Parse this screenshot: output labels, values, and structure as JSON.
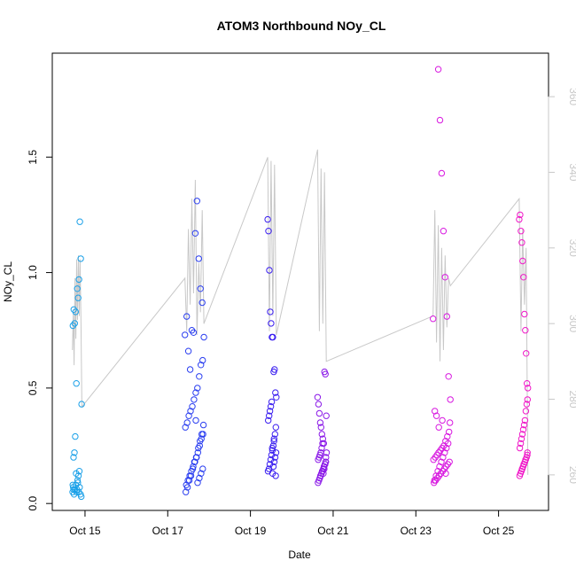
{
  "chart_data": {
    "type": "scatter",
    "title": "ATOM3 Northbound NOy_CL",
    "xlabel": "Date",
    "ylabel": "NOy_CL",
    "xlim": [
      "2017-10-14T05:00",
      "2017-10-26T05:00"
    ],
    "ylim": [
      -0.03,
      1.95
    ],
    "y2lim": [
      250.6,
      371.5
    ],
    "x_ticks": [
      {
        "x": "2017-10-15",
        "label": "Oct 15"
      },
      {
        "x": "2017-10-17",
        "label": "Oct 17"
      },
      {
        "x": "2017-10-19",
        "label": "Oct 19"
      },
      {
        "x": "2017-10-21",
        "label": "Oct 21"
      },
      {
        "x": "2017-10-23",
        "label": "Oct 23"
      },
      {
        "x": "2017-10-25",
        "label": "Oct 25"
      }
    ],
    "y_ticks": [
      {
        "value": 0.0,
        "label": "0.0"
      },
      {
        "value": 0.5,
        "label": "0.5"
      },
      {
        "value": 1.0,
        "label": "1.0"
      },
      {
        "value": 1.5,
        "label": "1.5"
      }
    ],
    "y2_ticks": [
      {
        "value": 260,
        "label": "260"
      },
      {
        "value": 280,
        "label": "280"
      },
      {
        "value": 300,
        "label": "300"
      },
      {
        "value": 320,
        "label": "320"
      },
      {
        "value": 340,
        "label": "340"
      },
      {
        "value": 360,
        "label": "360"
      }
    ],
    "grid": false,
    "colors": {
      "background_line": "#c8c8c8",
      "right_axis": "#c8c8c8",
      "axis": "#000000"
    },
    "series": [
      {
        "color": "#1aa0e8",
        "x": [
          "2017-10-14T17:00",
          "2017-10-14T17:30",
          "2017-10-14T18:00",
          "2017-10-14T18:30",
          "2017-10-14T19:00",
          "2017-10-14T19:30",
          "2017-10-14T20:00",
          "2017-10-14T20:30",
          "2017-10-14T21:00",
          "2017-10-14T21:30",
          "2017-10-14T22:00",
          "2017-10-14T16:50",
          "2017-10-14T17:10",
          "2017-10-14T17:40",
          "2017-10-14T18:10",
          "2017-10-14T18:40",
          "2017-10-14T19:10",
          "2017-10-14T19:40",
          "2017-10-14T20:10",
          "2017-10-14T20:40",
          "2017-10-14T17:20",
          "2017-10-14T17:50",
          "2017-10-14T18:20",
          "2017-10-14T18:50",
          "2017-10-14T19:20",
          "2017-10-14T19:50",
          "2017-10-14T20:20",
          "2017-10-14T20:50",
          "2017-10-14T21:20",
          "2017-10-14T21:50",
          "2017-10-14T16:55",
          "2017-10-14T17:25"
        ],
        "y": [
          0.77,
          0.84,
          0.78,
          0.83,
          0.52,
          0.93,
          0.89,
          0.97,
          1.22,
          1.06,
          0.43,
          0.05,
          0.07,
          0.04,
          0.06,
          0.08,
          0.05,
          0.1,
          0.12,
          0.14,
          0.2,
          0.22,
          0.29,
          0.13,
          0.06,
          0.09,
          0.05,
          0.07,
          0.04,
          0.03,
          0.08,
          0.06
        ]
      },
      {
        "color": "#2a3ef0",
        "x": [
          "2017-10-17T10:00",
          "2017-10-17T11:00",
          "2017-10-17T12:00",
          "2017-10-17T13:00",
          "2017-10-17T14:00",
          "2017-10-17T15:00",
          "2017-10-17T16:00",
          "2017-10-17T17:00",
          "2017-10-17T18:00",
          "2017-10-17T19:00",
          "2017-10-17T20:00",
          "2017-10-17T21:00",
          "2017-10-17T10:30",
          "2017-10-17T11:30",
          "2017-10-17T12:30",
          "2017-10-17T13:30",
          "2017-10-17T14:30",
          "2017-10-17T15:30",
          "2017-10-17T16:30",
          "2017-10-17T17:30",
          "2017-10-17T18:30",
          "2017-10-17T19:30",
          "2017-10-17T20:30",
          "2017-10-17T10:15",
          "2017-10-17T11:15",
          "2017-10-17T12:15",
          "2017-10-17T13:15",
          "2017-10-17T14:15",
          "2017-10-17T15:15",
          "2017-10-17T16:15",
          "2017-10-17T17:15",
          "2017-10-17T18:15",
          "2017-10-17T19:15",
          "2017-10-17T20:15",
          "2017-10-17T10:45",
          "2017-10-17T11:45",
          "2017-10-17T12:45",
          "2017-10-17T13:45",
          "2017-10-17T14:45",
          "2017-10-17T15:45",
          "2017-10-17T16:45",
          "2017-10-17T17:45",
          "2017-10-17T18:45",
          "2017-10-17T19:45",
          "2017-10-17T20:45",
          "2017-10-17T16:20",
          "2017-10-17T17:20",
          "2017-10-17T18:20",
          "2017-10-17T19:20",
          "2017-10-17T20:20"
        ],
        "y": [
          0.73,
          0.81,
          0.66,
          0.58,
          0.75,
          0.74,
          1.17,
          1.31,
          1.06,
          0.93,
          0.87,
          0.72,
          0.05,
          0.07,
          0.1,
          0.12,
          0.15,
          0.18,
          0.2,
          0.22,
          0.25,
          0.28,
          0.3,
          0.33,
          0.35,
          0.38,
          0.4,
          0.42,
          0.45,
          0.48,
          0.5,
          0.55,
          0.6,
          0.62,
          0.08,
          0.1,
          0.12,
          0.14,
          0.16,
          0.18,
          0.2,
          0.24,
          0.27,
          0.3,
          0.34,
          0.36,
          0.09,
          0.11,
          0.13,
          0.15
        ]
      },
      {
        "color": "#3a1ef0",
        "x": [
          "2017-10-19T10:00",
          "2017-10-19T10:30",
          "2017-10-19T11:00",
          "2017-10-19T11:30",
          "2017-10-19T12:00",
          "2017-10-19T12:30",
          "2017-10-19T13:00",
          "2017-10-19T13:30",
          "2017-10-19T14:00",
          "2017-10-19T14:30",
          "2017-10-19T15:00",
          "2017-10-19T10:15",
          "2017-10-19T10:45",
          "2017-10-19T11:15",
          "2017-10-19T11:45",
          "2017-10-19T12:15",
          "2017-10-19T12:45",
          "2017-10-19T13:15",
          "2017-10-19T13:45",
          "2017-10-19T14:15",
          "2017-10-19T14:45",
          "2017-10-19T10:20",
          "2017-10-19T10:50",
          "2017-10-19T11:20",
          "2017-10-19T11:50",
          "2017-10-19T12:20",
          "2017-10-19T12:50",
          "2017-10-19T13:20",
          "2017-10-19T13:50",
          "2017-10-19T14:20",
          "2017-10-19T14:50",
          "2017-10-19T12:40",
          "2017-10-19T13:40",
          "2017-10-19T14:40"
        ],
        "y": [
          1.23,
          1.18,
          1.01,
          0.83,
          0.78,
          0.72,
          0.72,
          0.57,
          0.58,
          0.48,
          0.46,
          0.14,
          0.15,
          0.17,
          0.19,
          0.21,
          0.23,
          0.25,
          0.28,
          0.3,
          0.33,
          0.36,
          0.38,
          0.4,
          0.42,
          0.44,
          0.13,
          0.16,
          0.18,
          0.2,
          0.22,
          0.24,
          0.27,
          0.12
        ]
      },
      {
        "color": "#8a18e8",
        "x": [
          "2017-10-20T15:00",
          "2017-10-20T15:30",
          "2017-10-20T16:00",
          "2017-10-20T16:30",
          "2017-10-20T17:00",
          "2017-10-20T17:30",
          "2017-10-20T18:00",
          "2017-10-20T18:30",
          "2017-10-20T19:00",
          "2017-10-20T19:30",
          "2017-10-20T20:00",
          "2017-10-20T15:15",
          "2017-10-20T15:45",
          "2017-10-20T16:15",
          "2017-10-20T16:45",
          "2017-10-20T17:15",
          "2017-10-20T17:45",
          "2017-10-20T18:15",
          "2017-10-20T18:45",
          "2017-10-20T19:15",
          "2017-10-20T19:45",
          "2017-10-20T15:20",
          "2017-10-20T15:50",
          "2017-10-20T16:20",
          "2017-10-20T16:50",
          "2017-10-20T17:20",
          "2017-10-20T17:50",
          "2017-10-20T18:20",
          "2017-10-20T18:50",
          "2017-10-20T19:20",
          "2017-10-20T19:50",
          "2017-10-20T16:40",
          "2017-10-20T17:40",
          "2017-10-20T18:40",
          "2017-10-20T19:40",
          "2017-10-20T20:10"
        ],
        "y": [
          0.46,
          0.43,
          0.39,
          0.35,
          0.33,
          0.3,
          0.28,
          0.26,
          0.57,
          0.56,
          0.38,
          0.09,
          0.1,
          0.11,
          0.12,
          0.13,
          0.14,
          0.15,
          0.16,
          0.17,
          0.18,
          0.19,
          0.2,
          0.21,
          0.22,
          0.24,
          0.26,
          0.13,
          0.15,
          0.17,
          0.2,
          0.12,
          0.14,
          0.16,
          0.18,
          0.22
        ]
      },
      {
        "color": "#d818e0",
        "x": [
          "2017-10-23T10:00",
          "2017-10-23T11:00",
          "2017-10-23T12:00",
          "2017-10-23T13:00",
          "2017-10-23T14:00",
          "2017-10-23T15:00",
          "2017-10-23T16:00",
          "2017-10-23T17:00",
          "2017-10-23T18:00",
          "2017-10-23T19:00",
          "2017-10-23T20:00",
          "2017-10-23T10:30",
          "2017-10-23T11:30",
          "2017-10-23T12:30",
          "2017-10-23T13:30",
          "2017-10-23T14:30",
          "2017-10-23T15:30",
          "2017-10-23T16:30",
          "2017-10-23T17:30",
          "2017-10-23T18:30",
          "2017-10-23T19:30",
          "2017-10-23T10:15",
          "2017-10-23T11:15",
          "2017-10-23T12:15",
          "2017-10-23T13:15",
          "2017-10-23T14:15",
          "2017-10-23T15:15",
          "2017-10-23T16:15",
          "2017-10-23T17:15",
          "2017-10-23T18:15",
          "2017-10-23T19:15",
          "2017-10-23T10:45",
          "2017-10-23T11:45",
          "2017-10-23T12:45",
          "2017-10-23T13:45",
          "2017-10-23T14:45",
          "2017-10-23T15:45",
          "2017-10-23T16:45",
          "2017-10-23T17:45",
          "2017-10-23T18:45",
          "2017-10-23T19:45",
          "2017-10-23T13:20",
          "2017-10-23T15:20",
          "2017-10-23T17:20"
        ],
        "y": [
          0.8,
          0.4,
          0.38,
          1.88,
          1.66,
          1.43,
          1.18,
          0.98,
          0.81,
          0.55,
          0.45,
          0.09,
          0.1,
          0.11,
          0.12,
          0.13,
          0.14,
          0.15,
          0.16,
          0.17,
          0.18,
          0.19,
          0.2,
          0.21,
          0.22,
          0.23,
          0.24,
          0.25,
          0.27,
          0.29,
          0.31,
          0.1,
          0.12,
          0.14,
          0.16,
          0.18,
          0.2,
          0.22,
          0.24,
          0.26,
          0.35,
          0.33,
          0.36,
          0.13
        ]
      },
      {
        "color": "#f018c8",
        "x": [
          "2017-10-25T12:00",
          "2017-10-25T12:30",
          "2017-10-25T13:00",
          "2017-10-25T13:30",
          "2017-10-25T14:00",
          "2017-10-25T14:30",
          "2017-10-25T15:00",
          "2017-10-25T15:30",
          "2017-10-25T16:00",
          "2017-10-25T16:30",
          "2017-10-25T17:00",
          "2017-10-25T12:15",
          "2017-10-25T12:45",
          "2017-10-25T13:15",
          "2017-10-25T13:45",
          "2017-10-25T14:15",
          "2017-10-25T14:45",
          "2017-10-25T15:15",
          "2017-10-25T15:45",
          "2017-10-25T16:15",
          "2017-10-25T16:45",
          "2017-10-25T12:20",
          "2017-10-25T12:50",
          "2017-10-25T13:20",
          "2017-10-25T13:50",
          "2017-10-25T14:20",
          "2017-10-25T14:50",
          "2017-10-25T15:20",
          "2017-10-25T15:50",
          "2017-10-25T16:20",
          "2017-10-25T16:50",
          "2017-10-25T13:40",
          "2017-10-25T14:40",
          "2017-10-25T15:40",
          "2017-10-25T16:40"
        ],
        "y": [
          1.23,
          1.25,
          1.18,
          1.13,
          1.05,
          0.98,
          0.82,
          0.75,
          0.65,
          0.52,
          0.5,
          0.12,
          0.13,
          0.14,
          0.15,
          0.16,
          0.17,
          0.18,
          0.19,
          0.2,
          0.22,
          0.24,
          0.26,
          0.28,
          0.3,
          0.32,
          0.34,
          0.36,
          0.4,
          0.43,
          0.45,
          0.15,
          0.17,
          0.19,
          0.21
        ]
      }
    ],
    "background_line": {
      "color": "#c8c8c8",
      "axis": "right",
      "x": [
        "2017-10-14T16:40",
        "2017-10-14T17:10",
        "2017-10-14T17:40",
        "2017-10-14T18:10",
        "2017-10-14T18:40",
        "2017-10-14T19:10",
        "2017-10-14T19:40",
        "2017-10-14T20:10",
        "2017-10-14T20:40",
        "2017-10-14T21:10",
        "2017-10-14T21:40",
        "2017-10-14T22:10",
        "2017-10-17T10:00",
        "2017-10-17T11:00",
        "2017-10-17T12:00",
        "2017-10-17T13:00",
        "2017-10-17T14:00",
        "2017-10-17T15:00",
        "2017-10-17T16:00",
        "2017-10-17T17:00",
        "2017-10-17T18:00",
        "2017-10-17T19:00",
        "2017-10-17T20:00",
        "2017-10-17T21:00",
        "2017-10-19T10:00",
        "2017-10-19T11:00",
        "2017-10-19T12:00",
        "2017-10-19T13:00",
        "2017-10-19T14:00",
        "2017-10-19T15:00",
        "2017-10-20T15:00",
        "2017-10-20T16:00",
        "2017-10-20T17:00",
        "2017-10-20T18:00",
        "2017-10-20T19:00",
        "2017-10-20T20:00",
        "2017-10-23T10:00",
        "2017-10-23T11:00",
        "2017-10-23T12:00",
        "2017-10-23T13:00",
        "2017-10-23T14:00",
        "2017-10-23T15:00",
        "2017-10-23T16:00",
        "2017-10-23T17:00",
        "2017-10-23T18:00",
        "2017-10-23T19:00",
        "2017-10-23T20:00",
        "2017-10-25T12:00",
        "2017-10-25T13:00",
        "2017-10-25T14:00",
        "2017-10-25T15:00",
        "2017-10-25T16:00",
        "2017-10-25T17:00"
      ],
      "y": [
        293,
        303,
        289,
        312,
        296,
        317,
        301,
        318,
        302,
        317,
        300,
        278,
        312,
        298,
        325,
        305,
        333,
        308,
        338,
        297,
        316,
        303,
        330,
        300,
        344,
        298,
        343,
        302,
        342,
        297,
        346,
        298,
        341,
        300,
        340,
        290,
        302,
        330,
        295,
        326,
        290,
        320,
        293,
        318,
        299,
        312,
        310,
        333,
        298,
        325,
        305,
        320,
        260
      ]
    }
  }
}
